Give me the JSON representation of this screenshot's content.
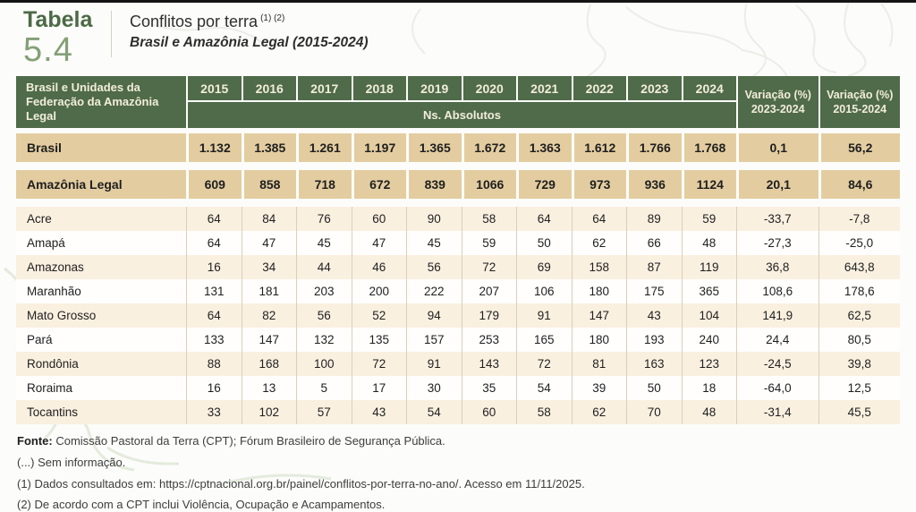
{
  "page": {
    "table_label": "Tabela",
    "table_number": "5.4",
    "title": "Conflitos por terra",
    "title_superscript": "(1) (2)",
    "subtitle": "Brasil e Amazônia Legal (2015-2024)"
  },
  "table": {
    "header": {
      "row_label": "Brasil e Unidades da Federação da Amazônia Legal",
      "years": [
        "2015",
        "2016",
        "2017",
        "2018",
        "2019",
        "2020",
        "2021",
        "2022",
        "2023",
        "2024"
      ],
      "units_label": "Ns. Absolutos",
      "variation_cols": [
        {
          "line1": "Variação (%)",
          "line2": "2023-2024"
        },
        {
          "line1": "Variação (%)",
          "line2": "2015-2024"
        }
      ]
    },
    "summary_rows": [
      {
        "label": "Brasil",
        "values": [
          "1.132",
          "1.385",
          "1.261",
          "1.197",
          "1.365",
          "1.672",
          "1.363",
          "1.612",
          "1.766",
          "1.768"
        ],
        "var_2023_2024": "0,1",
        "var_2015_2024": "56,2"
      },
      {
        "label": "Amazônia Legal",
        "values": [
          "609",
          "858",
          "718",
          "672",
          "839",
          "1066",
          "729",
          "973",
          "936",
          "1124"
        ],
        "var_2023_2024": "20,1",
        "var_2015_2024": "84,6"
      }
    ],
    "state_rows": [
      {
        "label": "Acre",
        "values": [
          "64",
          "84",
          "76",
          "60",
          "90",
          "58",
          "64",
          "64",
          "89",
          "59"
        ],
        "var_2023_2024": "-33,7",
        "var_2015_2024": "-7,8"
      },
      {
        "label": "Amapá",
        "values": [
          "64",
          "47",
          "45",
          "47",
          "45",
          "59",
          "50",
          "62",
          "66",
          "48"
        ],
        "var_2023_2024": "-27,3",
        "var_2015_2024": "-25,0"
      },
      {
        "label": "Amazonas",
        "values": [
          "16",
          "34",
          "44",
          "46",
          "56",
          "72",
          "69",
          "158",
          "87",
          "119"
        ],
        "var_2023_2024": "36,8",
        "var_2015_2024": "643,8"
      },
      {
        "label": "Maranhão",
        "values": [
          "131",
          "181",
          "203",
          "200",
          "222",
          "207",
          "106",
          "180",
          "175",
          "365"
        ],
        "var_2023_2024": "108,6",
        "var_2015_2024": "178,6"
      },
      {
        "label": "Mato Grosso",
        "values": [
          "64",
          "82",
          "56",
          "52",
          "94",
          "179",
          "91",
          "147",
          "43",
          "104"
        ],
        "var_2023_2024": "141,9",
        "var_2015_2024": "62,5"
      },
      {
        "label": "Pará",
        "values": [
          "133",
          "147",
          "132",
          "135",
          "157",
          "253",
          "165",
          "180",
          "193",
          "240"
        ],
        "var_2023_2024": "24,4",
        "var_2015_2024": "80,5"
      },
      {
        "label": "Rondônia",
        "values": [
          "88",
          "168",
          "100",
          "72",
          "91",
          "143",
          "72",
          "81",
          "163",
          "123"
        ],
        "var_2023_2024": "-24,5",
        "var_2015_2024": "39,8"
      },
      {
        "label": "Roraima",
        "values": [
          "16",
          "13",
          "5",
          "17",
          "30",
          "35",
          "54",
          "39",
          "50",
          "18"
        ],
        "var_2023_2024": "-64,0",
        "var_2015_2024": "12,5"
      },
      {
        "label": "Tocantins",
        "values": [
          "33",
          "102",
          "57",
          "43",
          "54",
          "60",
          "58",
          "62",
          "70",
          "48"
        ],
        "var_2023_2024": "-31,4",
        "var_2015_2024": "45,5"
      }
    ]
  },
  "footnotes": {
    "fonte_label": "Fonte:",
    "fonte_text": " Comissão Pastoral da Terra (CPT); Fórum Brasileiro de Segurança Pública.",
    "note_missing": "(...) Sem informação.",
    "note1": "(1) Dados consultados em: https://cptnacional.org.br/painel/conflitos-por-terra-no-ano/. Acesso em 11/11/2025.",
    "note2": "(2) De acordo com a CPT inclui Violência, Ocupação e Acampamentos."
  },
  "colors": {
    "header_green": "#4f6b49",
    "header_text_cream": "#f2edda",
    "summary_tan": "#e3cda0",
    "state_row_cream": "#faf0e0",
    "title_green_dark": "#4b6a45",
    "title_green_light": "#84a077"
  }
}
